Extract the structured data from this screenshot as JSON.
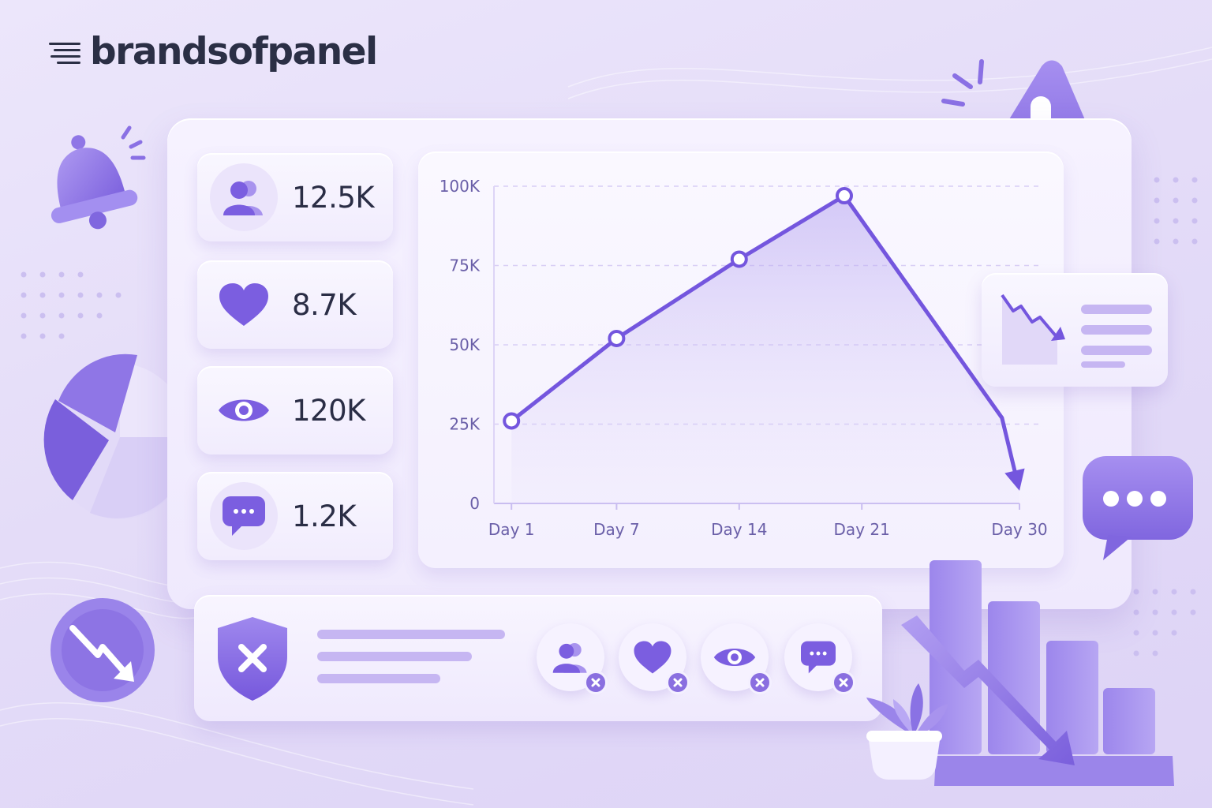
{
  "brand": {
    "name": "brandsofpanel"
  },
  "stats": [
    {
      "icon": "followers-icon",
      "value": "12.5K"
    },
    {
      "icon": "heart-icon",
      "value": "8.7K"
    },
    {
      "icon": "eye-icon",
      "value": "120K"
    },
    {
      "icon": "comment-icon",
      "value": "1.2K"
    }
  ],
  "lost_metrics": [
    {
      "icon": "followers-removed-icon"
    },
    {
      "icon": "likes-removed-icon"
    },
    {
      "icon": "views-removed-icon"
    },
    {
      "icon": "comments-removed-icon"
    }
  ],
  "colors": {
    "accent": "#7b5ee0",
    "accent_light": "#a893ee",
    "text_dark": "#2a2d45",
    "background": "#e8e0fa"
  },
  "chart_data": {
    "type": "area",
    "title": "",
    "xlabel": "",
    "ylabel": "",
    "x_ticks": [
      "Day 1",
      "Day 7",
      "Day 14",
      "Day 21",
      "Day 30"
    ],
    "y_ticks": [
      "0",
      "25K",
      "50K",
      "75K",
      "100K"
    ],
    "ylim": [
      0,
      100000
    ],
    "grid": true,
    "series": [
      {
        "points": [
          {
            "x": 1,
            "y": 26000
          },
          {
            "x": 7,
            "y": 52000
          },
          {
            "x": 14,
            "y": 77000
          },
          {
            "x": 20,
            "y": 97000
          },
          {
            "x": 29,
            "y": 27000
          },
          {
            "x": 30,
            "y": 4000
          }
        ],
        "markers": [
          1,
          7,
          14,
          20
        ],
        "ends_with_arrow": true
      }
    ]
  }
}
